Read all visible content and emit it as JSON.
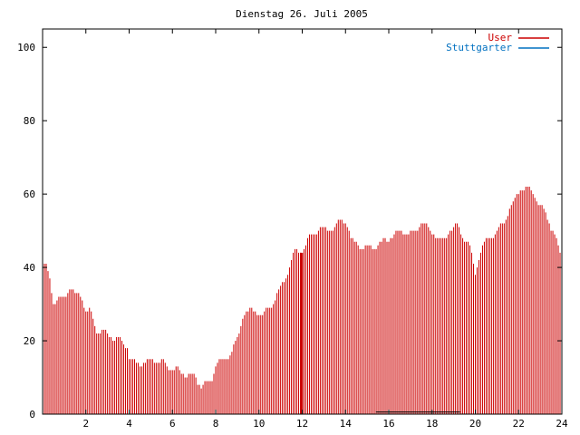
{
  "chart_data": {
    "type": "bar",
    "title": "Dienstag 26. Juli 2005",
    "xlabel": "",
    "ylabel": "",
    "xlim": [
      0,
      24
    ],
    "ylim": [
      0,
      105
    ],
    "x_ticks": [
      "2",
      "4",
      "6",
      "8",
      "10",
      "12",
      "14",
      "16",
      "18",
      "20",
      "22",
      "24"
    ],
    "y_ticks": [
      "0",
      "20",
      "40",
      "60",
      "80",
      "100"
    ],
    "grid": false,
    "legend_position": "top-right",
    "colors": {
      "user": "#cc0000",
      "stuttgarter": "#0070c0",
      "axis": "#000000"
    },
    "series": [
      {
        "name": "User",
        "keyframes": [
          [
            0.0,
            42
          ],
          [
            0.3,
            38
          ],
          [
            0.5,
            31
          ],
          [
            0.8,
            31
          ],
          [
            1.0,
            32
          ],
          [
            1.3,
            35
          ],
          [
            1.5,
            32
          ],
          [
            1.8,
            33
          ],
          [
            2.0,
            28
          ],
          [
            2.2,
            28
          ],
          [
            2.5,
            23
          ],
          [
            3.0,
            22
          ],
          [
            3.5,
            20
          ],
          [
            3.9,
            19
          ],
          [
            4.0,
            15
          ],
          [
            4.3,
            14
          ],
          [
            4.8,
            14
          ],
          [
            5.0,
            15
          ],
          [
            5.5,
            14
          ],
          [
            5.8,
            13
          ],
          [
            6.2,
            12
          ],
          [
            6.6,
            11
          ],
          [
            7.0,
            10
          ],
          [
            7.3,
            8
          ],
          [
            7.8,
            9
          ],
          [
            8.0,
            14
          ],
          [
            8.5,
            15
          ],
          [
            9.0,
            20
          ],
          [
            9.3,
            28
          ],
          [
            9.8,
            28
          ],
          [
            10.2,
            27
          ],
          [
            10.6,
            30
          ],
          [
            11.0,
            34
          ],
          [
            11.4,
            40
          ],
          [
            11.7,
            45
          ],
          [
            12.0,
            44
          ],
          [
            12.3,
            48
          ],
          [
            12.8,
            51
          ],
          [
            13.2,
            50
          ],
          [
            13.6,
            52
          ],
          [
            14.0,
            53
          ],
          [
            14.3,
            47
          ],
          [
            14.6,
            46
          ],
          [
            15.0,
            45
          ],
          [
            15.5,
            46
          ],
          [
            16.0,
            48
          ],
          [
            16.5,
            50
          ],
          [
            17.0,
            49
          ],
          [
            17.5,
            52
          ],
          [
            18.0,
            50
          ],
          [
            18.4,
            47
          ],
          [
            18.8,
            50
          ],
          [
            19.2,
            51
          ],
          [
            19.5,
            48
          ],
          [
            19.8,
            45
          ],
          [
            20.0,
            38
          ],
          [
            20.2,
            44
          ],
          [
            20.5,
            47
          ],
          [
            20.8,
            49
          ],
          [
            21.2,
            51
          ],
          [
            21.5,
            55
          ],
          [
            21.8,
            58
          ],
          [
            22.1,
            62
          ],
          [
            22.5,
            61
          ],
          [
            22.8,
            59
          ],
          [
            23.2,
            55
          ],
          [
            23.6,
            50
          ],
          [
            23.9,
            44
          ],
          [
            24.0,
            43
          ]
        ],
        "highlight_bars": [
          {
            "x": 11.95,
            "value": 44
          }
        ]
      },
      {
        "name": "Stuttgarter",
        "segments": [
          {
            "x_start": 15.4,
            "x_end": 19.3,
            "value": 0.6
          }
        ]
      }
    ]
  }
}
